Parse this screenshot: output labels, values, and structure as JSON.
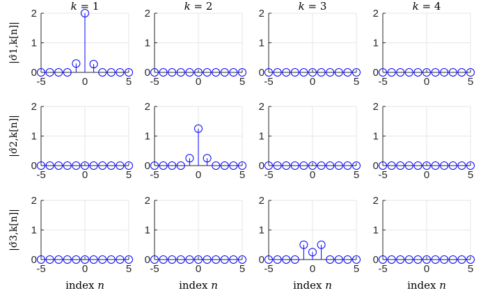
{
  "chart_data": {
    "type": "stem-grid",
    "rows": 3,
    "cols": 4,
    "x": [
      -5,
      -4,
      -3,
      -2,
      -1,
      0,
      1,
      2,
      3,
      4,
      5
    ],
    "xlim": [
      -5,
      5
    ],
    "ylim": [
      0,
      2
    ],
    "xticks": [
      "-5",
      "0",
      "5"
    ],
    "yticks": [
      "0",
      "1",
      "2"
    ],
    "grid": true,
    "column_titles": [
      "k = 1",
      "k = 2",
      "k = 3",
      "k = 4"
    ],
    "row_ylabels": [
      "|σ̂1,k[n]|",
      "|σ̂2,k[n]|",
      "|σ̂3,k[n]|"
    ],
    "xlabel": "index n",
    "colors": {
      "stem": "#0000ff",
      "axis": "#262626",
      "grid": "#e6e6e6"
    },
    "panels": [
      [
        [
          0,
          0,
          0,
          0,
          0.3,
          2.0,
          0.28,
          0,
          0,
          0,
          0
        ],
        [
          0,
          0,
          0,
          0,
          0,
          0,
          0,
          0,
          0,
          0,
          0
        ],
        [
          0,
          0,
          0,
          0,
          0,
          0,
          0,
          0,
          0,
          0,
          0
        ],
        [
          0,
          0,
          0,
          0,
          0,
          0,
          0,
          0,
          0,
          0,
          0
        ]
      ],
      [
        [
          0,
          0,
          0,
          0,
          0,
          0,
          0,
          0,
          0,
          0,
          0
        ],
        [
          0,
          0,
          0,
          0,
          0.25,
          1.25,
          0.25,
          0,
          0,
          0,
          0
        ],
        [
          0,
          0,
          0,
          0,
          0,
          0,
          0,
          0,
          0,
          0,
          0
        ],
        [
          0,
          0,
          0,
          0,
          0,
          0,
          0,
          0,
          0,
          0,
          0
        ]
      ],
      [
        [
          0,
          0,
          0,
          0,
          0,
          0,
          0,
          0,
          0,
          0,
          0
        ],
        [
          0,
          0,
          0,
          0,
          0,
          0,
          0,
          0,
          0,
          0,
          0
        ],
        [
          0,
          0,
          0,
          0,
          0.5,
          0.25,
          0.5,
          0,
          0,
          0,
          0
        ],
        [
          0,
          0,
          0,
          0,
          0,
          0,
          0,
          0,
          0,
          0,
          0
        ]
      ]
    ]
  }
}
